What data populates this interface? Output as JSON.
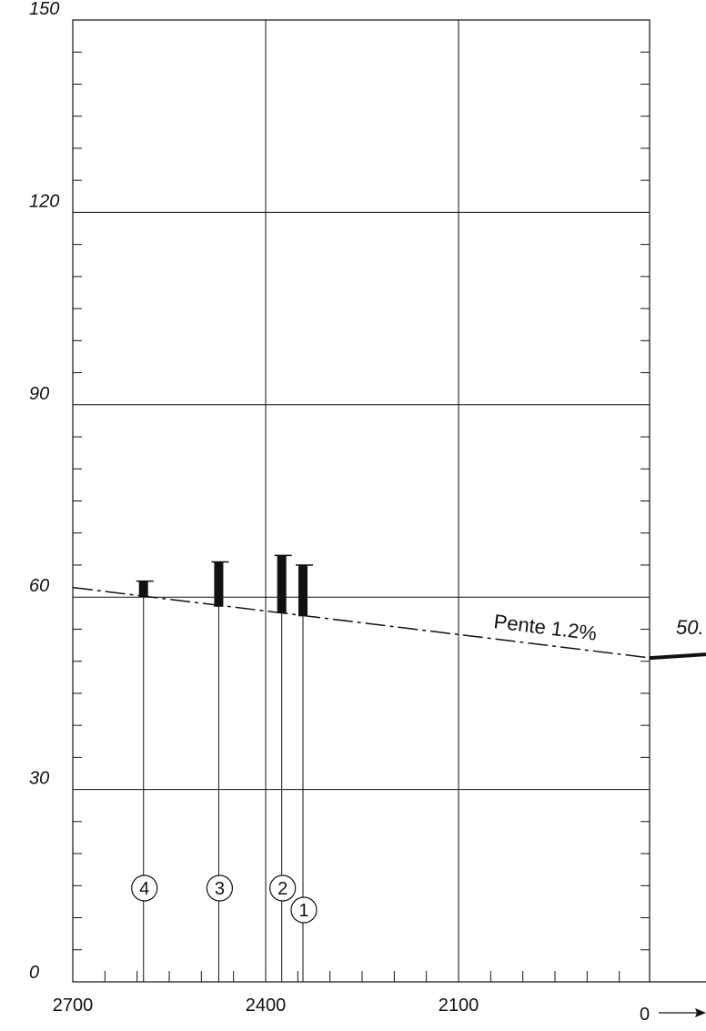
{
  "chart_data": {
    "type": "scatter",
    "y_ticks": [
      "0",
      "30",
      "60",
      "90",
      "120",
      "150"
    ],
    "x_ticks": [
      "2700",
      "2400",
      "2100"
    ],
    "origin_label": "0",
    "ylim": [
      0,
      150
    ],
    "xlim": [
      2700,
      1800
    ],
    "x_reversed": true,
    "grid": true,
    "slope_line": {
      "label": "Pente 1.2%",
      "from": {
        "x": 2700,
        "y": 61.5
      },
      "to": {
        "x": 1800,
        "y": 50.5
      }
    },
    "right_segment": {
      "label": "50.",
      "from": {
        "x": 1800,
        "y": 50.5
      },
      "to": {
        "x": 1715,
        "y": 51.2
      }
    },
    "markers": [
      {
        "id": "1",
        "x": 2342,
        "bottom": 57.0,
        "top": 65.0
      },
      {
        "id": "2",
        "x": 2375,
        "bottom": 57.5,
        "top": 66.5
      },
      {
        "id": "3",
        "x": 2473,
        "bottom": 58.5,
        "top": 65.5
      },
      {
        "id": "4",
        "x": 2590,
        "bottom": 60.0,
        "top": 62.5
      }
    ],
    "colors": {
      "ink": "#111111",
      "background": "#ffffff"
    }
  }
}
